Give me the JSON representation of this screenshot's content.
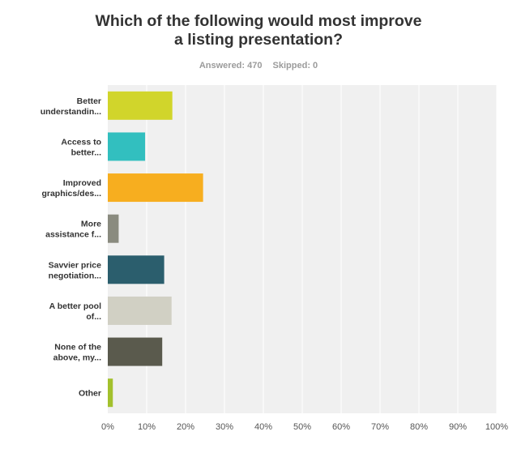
{
  "title_lines": [
    "Which of the following would most improve",
    "a listing presentation?"
  ],
  "answered": "Answered: 470",
  "skipped": "Skipped: 0",
  "chart_data": {
    "type": "bar",
    "orientation": "horizontal",
    "categories": [
      [
        "Better",
        "understandin..."
      ],
      [
        "Access to",
        "better..."
      ],
      [
        "Improved",
        "graphics/des..."
      ],
      [
        "More",
        "assistance f..."
      ],
      [
        "Savvier price",
        "negotiation..."
      ],
      [
        "A better pool",
        "of..."
      ],
      [
        "None of the",
        "above, my..."
      ],
      [
        "Other"
      ]
    ],
    "values": [
      16.6,
      9.6,
      24.5,
      2.8,
      14.5,
      16.4,
      14.0,
      1.3
    ],
    "colors": [
      "#d1d52b",
      "#32bfbf",
      "#f7ae1f",
      "#8a8b7f",
      "#2b5e6d",
      "#d1d0c4",
      "#5a5a4d",
      "#a3c12d"
    ],
    "xlim": [
      0,
      100
    ],
    "xticks": [
      "0%",
      "10%",
      "20%",
      "30%",
      "40%",
      "50%",
      "60%",
      "70%",
      "80%",
      "90%",
      "100%"
    ],
    "grid": true
  }
}
